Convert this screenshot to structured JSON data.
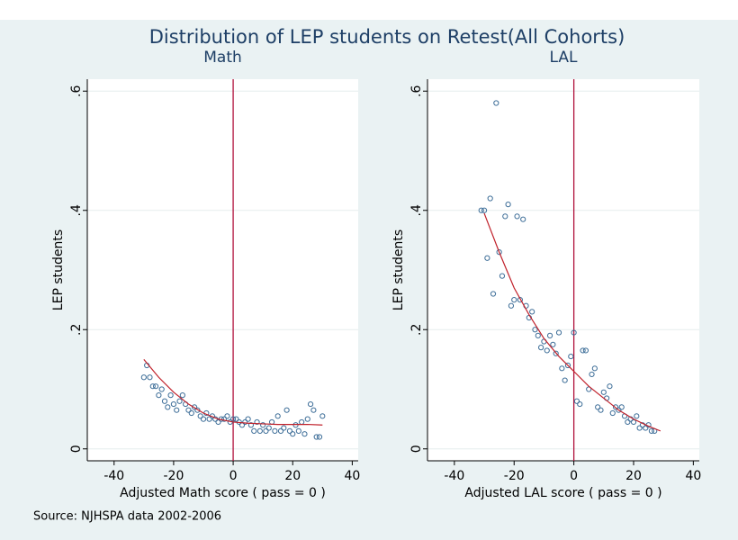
{
  "title": "Distribution of LEP students on Retest(All Cohorts)",
  "source": "Source: NJHSPA data 2002-2006",
  "chart_data": [
    {
      "type": "scatter",
      "title": "Math",
      "xlabel": "Adjusted Math score ( pass = 0 )",
      "ylabel": "LEP students",
      "xlim": [
        -49,
        42
      ],
      "ylim": [
        -0.02,
        0.62
      ],
      "xticks": [
        -40,
        -20,
        0,
        20,
        40
      ],
      "yticks": [
        0,
        {
          "value": 0.2,
          "label": ".2"
        },
        {
          "value": 0.4,
          "label": ".4"
        },
        {
          "value": 0.6,
          "label": ".6"
        }
      ],
      "grid": true,
      "vline": 0,
      "vline_color": "#b0103a",
      "series": [
        {
          "kind": "points",
          "color": "#3f6f99",
          "x": [
            -30,
            -29,
            -28,
            -27,
            -26,
            -25,
            -24,
            -23,
            -22,
            -21,
            -20,
            -19,
            -18,
            -17,
            -16,
            -15,
            -14,
            -13,
            -12,
            -11,
            -10,
            -9,
            -8,
            -7,
            -6,
            -5,
            -4,
            -3,
            -2,
            -1,
            0,
            1,
            2,
            3,
            4,
            5,
            6,
            7,
            8,
            9,
            10,
            11,
            12,
            13,
            14,
            15,
            16,
            17,
            18,
            19,
            20,
            21,
            22,
            23,
            24,
            25,
            26,
            27,
            28,
            29,
            30
          ],
          "values": [
            0.12,
            0.14,
            0.12,
            0.105,
            0.105,
            0.09,
            0.1,
            0.08,
            0.07,
            0.09,
            0.075,
            0.065,
            0.08,
            0.09,
            0.075,
            0.065,
            0.06,
            0.07,
            0.065,
            0.055,
            0.05,
            0.06,
            0.05,
            0.055,
            0.05,
            0.045,
            0.05,
            0.05,
            0.055,
            0.045,
            0.05,
            0.05,
            0.045,
            0.04,
            0.045,
            0.05,
            0.04,
            0.03,
            0.045,
            0.03,
            0.04,
            0.03,
            0.035,
            0.045,
            0.03,
            0.055,
            0.03,
            0.035,
            0.065,
            0.03,
            0.025,
            0.04,
            0.03,
            0.045,
            0.025,
            0.05,
            0.075,
            0.065,
            0.02,
            0.02,
            0.055
          ]
        },
        {
          "kind": "line",
          "color": "#c0202a",
          "x": [
            -30,
            -25,
            -20,
            -15,
            -10,
            -5,
            0,
            5,
            10,
            15,
            20,
            25,
            30
          ],
          "values": [
            0.15,
            0.12,
            0.095,
            0.075,
            0.06,
            0.05,
            0.045,
            0.043,
            0.042,
            0.041,
            0.041,
            0.041,
            0.04
          ]
        }
      ]
    },
    {
      "type": "scatter",
      "title": "LAL",
      "xlabel": "Adjusted LAL score ( pass = 0 )",
      "ylabel": "LEP students",
      "xlim": [
        -49,
        42
      ],
      "ylim": [
        -0.02,
        0.62
      ],
      "xticks": [
        -40,
        -20,
        0,
        20,
        40
      ],
      "yticks": [
        0,
        {
          "value": 0.2,
          "label": ".2"
        },
        {
          "value": 0.4,
          "label": ".4"
        },
        {
          "value": 0.6,
          "label": ".6"
        }
      ],
      "grid": true,
      "vline": 0,
      "vline_color": "#b0103a",
      "series": [
        {
          "kind": "points",
          "color": "#3f6f99",
          "x": [
            -31,
            -30,
            -29,
            -28,
            -27,
            -26,
            -25,
            -24,
            -23,
            -22,
            -21,
            -20,
            -19,
            -18,
            -17,
            -16,
            -15,
            -14,
            -13,
            -12,
            -11,
            -10,
            -9,
            -8,
            -7,
            -6,
            -5,
            -4,
            -3,
            -2,
            -1,
            0,
            1,
            2,
            3,
            4,
            5,
            6,
            7,
            8,
            9,
            10,
            11,
            12,
            13,
            14,
            15,
            16,
            17,
            18,
            19,
            20,
            21,
            22,
            23,
            24,
            25,
            26,
            27
          ],
          "values": [
            0.4,
            0.4,
            0.32,
            0.42,
            0.26,
            0.58,
            0.33,
            0.29,
            0.39,
            0.41,
            0.24,
            0.25,
            0.39,
            0.25,
            0.385,
            0.24,
            0.22,
            0.23,
            0.2,
            0.19,
            0.17,
            0.18,
            0.165,
            0.19,
            0.175,
            0.16,
            0.195,
            0.135,
            0.115,
            0.14,
            0.155,
            0.195,
            0.08,
            0.075,
            0.165,
            0.165,
            0.1,
            0.125,
            0.135,
            0.07,
            0.065,
            0.095,
            0.085,
            0.105,
            0.06,
            0.07,
            0.065,
            0.07,
            0.055,
            0.045,
            0.05,
            0.045,
            0.055,
            0.035,
            0.04,
            0.035,
            0.04,
            0.03,
            0.03
          ]
        },
        {
          "kind": "line",
          "color": "#c0202a",
          "x": [
            -30,
            -25,
            -20,
            -15,
            -10,
            -5,
            0,
            5,
            10,
            15,
            20,
            25,
            29
          ],
          "values": [
            0.395,
            0.33,
            0.27,
            0.225,
            0.185,
            0.155,
            0.13,
            0.105,
            0.085,
            0.065,
            0.05,
            0.038,
            0.03
          ]
        }
      ]
    }
  ]
}
